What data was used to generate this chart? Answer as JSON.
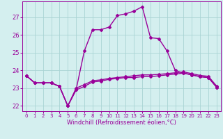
{
  "xlabel": "Windchill (Refroidissement éolien,°C)",
  "x_values": [
    0,
    1,
    2,
    3,
    4,
    5,
    6,
    7,
    8,
    9,
    10,
    11,
    12,
    13,
    14,
    15,
    16,
    17,
    18,
    19,
    20,
    21,
    22,
    23
  ],
  "line1_y": [
    23.7,
    23.3,
    23.3,
    23.3,
    23.1,
    22.0,
    22.9,
    23.1,
    23.35,
    23.4,
    23.5,
    23.55,
    23.6,
    23.6,
    23.65,
    23.65,
    23.7,
    23.75,
    23.8,
    23.85,
    23.75,
    23.65,
    23.6,
    23.05
  ],
  "line2_y": [
    23.7,
    23.3,
    23.3,
    23.3,
    23.1,
    22.0,
    22.9,
    25.1,
    26.3,
    26.3,
    26.45,
    27.1,
    27.2,
    27.35,
    27.6,
    25.85,
    25.8,
    25.1,
    24.0,
    23.85,
    23.75,
    23.65,
    23.6,
    23.05
  ],
  "line3_y": [
    23.7,
    23.3,
    23.3,
    23.3,
    23.1,
    22.0,
    23.0,
    23.2,
    23.42,
    23.47,
    23.55,
    23.6,
    23.65,
    23.7,
    23.75,
    23.75,
    23.78,
    23.82,
    23.87,
    23.92,
    23.82,
    23.72,
    23.67,
    23.12
  ],
  "ylim": [
    21.7,
    27.9
  ],
  "yticks": [
    22,
    23,
    24,
    25,
    26,
    27
  ],
  "line_color": "#990099",
  "bg_color": "#d4efef",
  "grid_color": "#aad4d4",
  "text_color": "#990099",
  "marker": "D",
  "marker_size": 2,
  "linewidth": 1.0,
  "xlim_left": -0.5,
  "xlim_right": 23.5
}
